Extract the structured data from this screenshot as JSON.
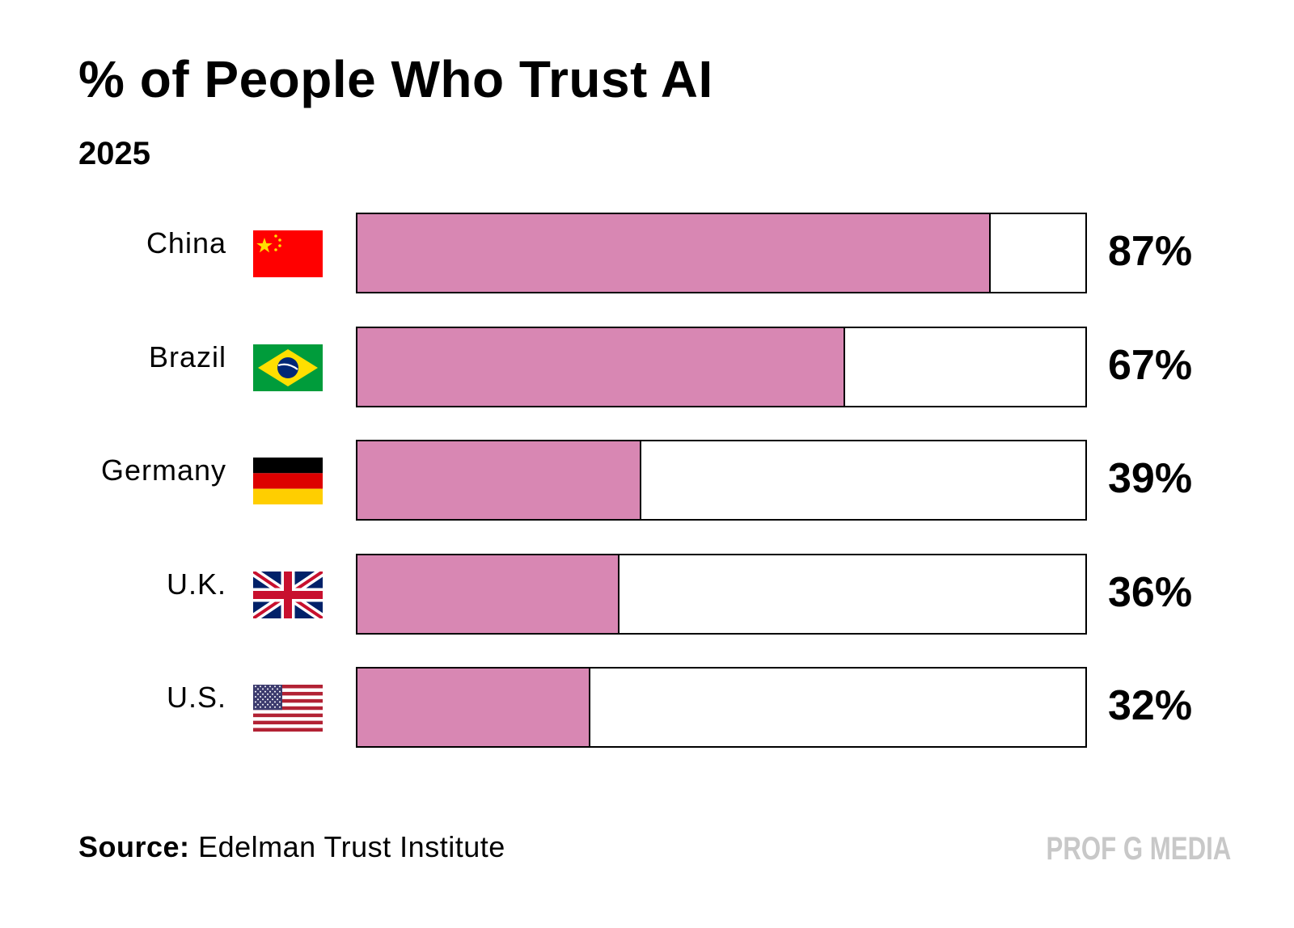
{
  "chart_data": {
    "type": "bar",
    "orientation": "horizontal",
    "title": "% of People Who Trust AI",
    "subtitle": "2025",
    "categories": [
      "China",
      "Brazil",
      "Germany",
      "U.K.",
      "U.S."
    ],
    "values": [
      87,
      67,
      39,
      36,
      32
    ],
    "value_labels": [
      "87%",
      "67%",
      "39%",
      "36%",
      "32%"
    ],
    "xlim": [
      0,
      100
    ],
    "unit": "%",
    "bar_color": "#d887b3",
    "track_color": "#ffffff",
    "flags": [
      "china-flag",
      "brazil-flag",
      "germany-flag",
      "uk-flag",
      "us-flag"
    ]
  },
  "footer": {
    "source_label": "Source:",
    "source_text": "Edelman Trust Institute",
    "brand": "PROF G MEDIA"
  }
}
